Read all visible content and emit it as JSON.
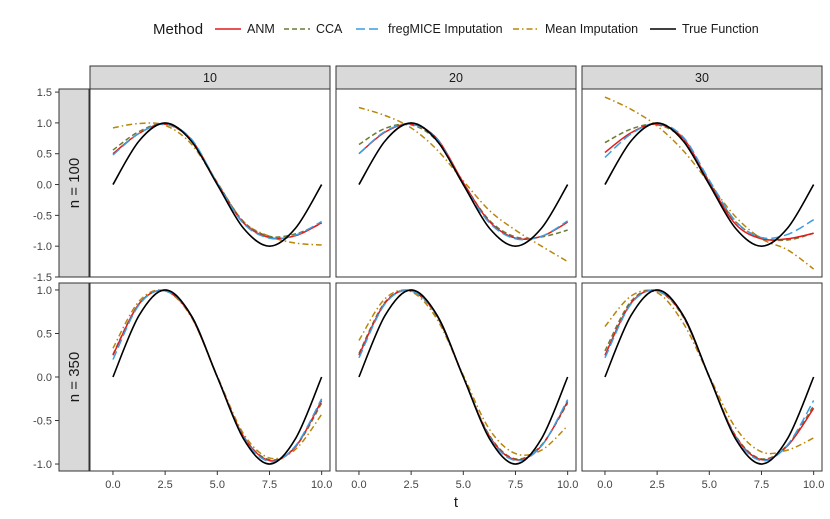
{
  "chart_data": {
    "type": "line",
    "x_label": "t",
    "legend": {
      "title": "Method",
      "position": "top",
      "entries": [
        {
          "name": "ANM",
          "color": "#e41a1c",
          "dash": "solid"
        },
        {
          "name": "CCA",
          "color": "#6b7c33",
          "dash": "dashed"
        },
        {
          "name": "fregMICE Imputation",
          "color": "#3a9ee0",
          "dash": "longdash"
        },
        {
          "name": "Mean Imputation",
          "color": "#b8860b",
          "dash": "dotdash"
        },
        {
          "name": "True Function",
          "color": "#000000",
          "dash": "solid"
        }
      ]
    },
    "facet_columns": [
      "10",
      "20",
      "30"
    ],
    "facet_rows": [
      "n = 100",
      "n = 350"
    ],
    "x_ticks": [
      "0.0",
      "2.5",
      "5.0",
      "7.5",
      "10.0"
    ],
    "x_tick_values": [
      0,
      2.5,
      5,
      7.5,
      10
    ],
    "xlim": [
      -1.1,
      10.4
    ],
    "rows": [
      {
        "label": "n = 100",
        "ylim": [
          -1.5,
          1.55
        ],
        "y_ticks": [
          "-1.5",
          "-1.0",
          "-0.5",
          "0.0",
          "0.5",
          "1.0",
          "1.5"
        ],
        "y_tick_values": [
          -1.5,
          -1.0,
          -0.5,
          0.0,
          0.5,
          1.0,
          1.5
        ]
      },
      {
        "label": "n = 350",
        "ylim": [
          -1.08,
          1.08
        ],
        "y_ticks": [
          "-1.0",
          "-0.5",
          "0.0",
          "0.5",
          "1.0"
        ],
        "y_tick_values": [
          -1.0,
          -0.5,
          0.0,
          0.5,
          1.0
        ]
      }
    ],
    "x": [
      0,
      1.25,
      2.5,
      3.75,
      5,
      6.25,
      7.5,
      8.75,
      10
    ],
    "panels": [
      {
        "row": 0,
        "col": 0,
        "series": {
          "ANM": [
            0.5,
            0.83,
            0.98,
            0.73,
            0.02,
            -0.62,
            -0.86,
            -0.83,
            -0.62
          ],
          "CCA": [
            0.56,
            0.86,
            0.98,
            0.72,
            0.03,
            -0.6,
            -0.84,
            -0.8,
            -0.63
          ],
          "fregMICE Imputation": [
            0.48,
            0.83,
            0.98,
            0.74,
            0.02,
            -0.63,
            -0.87,
            -0.82,
            -0.6
          ],
          "Mean Imputation": [
            0.92,
            0.99,
            0.96,
            0.66,
            0.03,
            -0.6,
            -0.84,
            -0.95,
            -0.98
          ],
          "True Function": [
            0.0,
            0.707,
            1.0,
            0.707,
            0.0,
            -0.707,
            -1.0,
            -0.707,
            0.0
          ]
        }
      },
      {
        "row": 0,
        "col": 1,
        "series": {
          "ANM": [
            0.5,
            0.85,
            0.98,
            0.74,
            0.03,
            -0.6,
            -0.87,
            -0.84,
            -0.61
          ],
          "CCA": [
            0.65,
            0.91,
            0.97,
            0.7,
            0.02,
            -0.58,
            -0.85,
            -0.85,
            -0.74
          ],
          "fregMICE Imputation": [
            0.5,
            0.86,
            0.98,
            0.73,
            0.0,
            -0.62,
            -0.88,
            -0.84,
            -0.59
          ],
          "Mean Imputation": [
            1.25,
            1.12,
            0.92,
            0.56,
            0.06,
            -0.42,
            -0.74,
            -1.0,
            -1.25
          ],
          "True Function": [
            0.0,
            0.707,
            1.0,
            0.707,
            0.0,
            -0.707,
            -1.0,
            -0.707,
            0.0
          ]
        }
      },
      {
        "row": 0,
        "col": 2,
        "series": {
          "ANM": [
            0.52,
            0.84,
            0.98,
            0.75,
            0.03,
            -0.64,
            -0.88,
            -0.88,
            -0.79
          ],
          "CCA": [
            0.68,
            0.9,
            0.97,
            0.73,
            0.05,
            -0.6,
            -0.86,
            -0.9,
            -0.79
          ],
          "fregMICE Imputation": [
            0.44,
            0.82,
            0.99,
            0.77,
            0.07,
            -0.59,
            -0.86,
            -0.81,
            -0.57
          ],
          "Mean Imputation": [
            1.42,
            1.22,
            0.95,
            0.55,
            0.02,
            -0.52,
            -0.88,
            -1.06,
            -1.37
          ],
          "True Function": [
            0.0,
            0.707,
            1.0,
            0.707,
            0.0,
            -0.707,
            -1.0,
            -0.707,
            0.0
          ]
        }
      },
      {
        "row": 1,
        "col": 0,
        "series": {
          "ANM": [
            0.25,
            0.84,
            0.99,
            0.7,
            0.0,
            -0.68,
            -0.96,
            -0.8,
            -0.27
          ],
          "CCA": [
            0.26,
            0.84,
            0.99,
            0.7,
            0.0,
            -0.68,
            -0.95,
            -0.8,
            -0.3
          ],
          "fregMICE Imputation": [
            0.2,
            0.83,
            0.99,
            0.71,
            0.0,
            -0.69,
            -0.97,
            -0.79,
            -0.25
          ],
          "Mean Imputation": [
            0.33,
            0.87,
            0.99,
            0.69,
            0.01,
            -0.65,
            -0.93,
            -0.83,
            -0.43
          ],
          "True Function": [
            0.0,
            0.707,
            1.0,
            0.707,
            0.0,
            -0.707,
            -1.0,
            -0.707,
            0.0
          ]
        }
      },
      {
        "row": 1,
        "col": 1,
        "series": {
          "ANM": [
            0.25,
            0.85,
            0.99,
            0.7,
            0.0,
            -0.68,
            -0.95,
            -0.79,
            -0.28
          ],
          "CCA": [
            0.27,
            0.86,
            0.99,
            0.69,
            0.0,
            -0.67,
            -0.94,
            -0.78,
            -0.3
          ],
          "fregMICE Imputation": [
            0.22,
            0.84,
            0.99,
            0.7,
            0.0,
            -0.69,
            -0.96,
            -0.79,
            -0.26
          ],
          "Mean Imputation": [
            0.42,
            0.9,
            0.98,
            0.66,
            0.02,
            -0.6,
            -0.88,
            -0.84,
            -0.56
          ],
          "True Function": [
            0.0,
            0.707,
            1.0,
            0.707,
            0.0,
            -0.707,
            -1.0,
            -0.707,
            0.0
          ]
        }
      },
      {
        "row": 1,
        "col": 2,
        "series": {
          "ANM": [
            0.25,
            0.85,
            0.99,
            0.7,
            0.0,
            -0.68,
            -0.95,
            -0.79,
            -0.36
          ],
          "CCA": [
            0.3,
            0.87,
            0.99,
            0.69,
            0.0,
            -0.67,
            -0.94,
            -0.78,
            -0.33
          ],
          "fregMICE Imputation": [
            0.22,
            0.84,
            0.99,
            0.71,
            0.0,
            -0.69,
            -0.96,
            -0.78,
            -0.27
          ],
          "Mean Imputation": [
            0.58,
            0.93,
            0.97,
            0.62,
            0.01,
            -0.58,
            -0.86,
            -0.84,
            -0.7
          ],
          "True Function": [
            0.0,
            0.707,
            1.0,
            0.707,
            0.0,
            -0.707,
            -1.0,
            -0.707,
            0.0
          ]
        }
      }
    ]
  }
}
